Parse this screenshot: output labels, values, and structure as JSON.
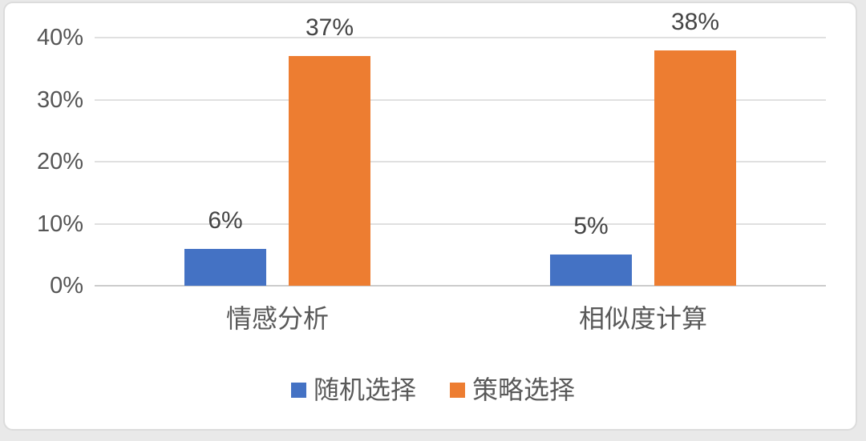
{
  "page": {
    "background_color": "#e9e9e9",
    "card_background_color": "#ffffff",
    "card_border_color": "#dcdcdc"
  },
  "chart_data": {
    "type": "bar",
    "title": "",
    "xlabel": "",
    "ylabel": "",
    "categories": [
      "情感分析",
      "相似度计算"
    ],
    "series": [
      {
        "name": "随机选择",
        "color": "#4472C4",
        "values": [
          6,
          5
        ],
        "data_labels": [
          "6%",
          "5%"
        ]
      },
      {
        "name": "策略选择",
        "color": "#ED7D31",
        "values": [
          37,
          38
        ],
        "data_labels": [
          "37%",
          "38%"
        ]
      }
    ],
    "y_axis": {
      "min": 0,
      "max": 40,
      "step": 10,
      "tick_labels": [
        "0%",
        "10%",
        "20%",
        "30%",
        "40%"
      ]
    },
    "grid": true,
    "legend_position": "bottom-center",
    "colors": {
      "gridline": "#e0e0e0",
      "baseline": "#cccccc",
      "tick_text": "#555555",
      "data_label_text": "#444444",
      "category_text": "#595959",
      "legend_text": "#595959"
    }
  }
}
